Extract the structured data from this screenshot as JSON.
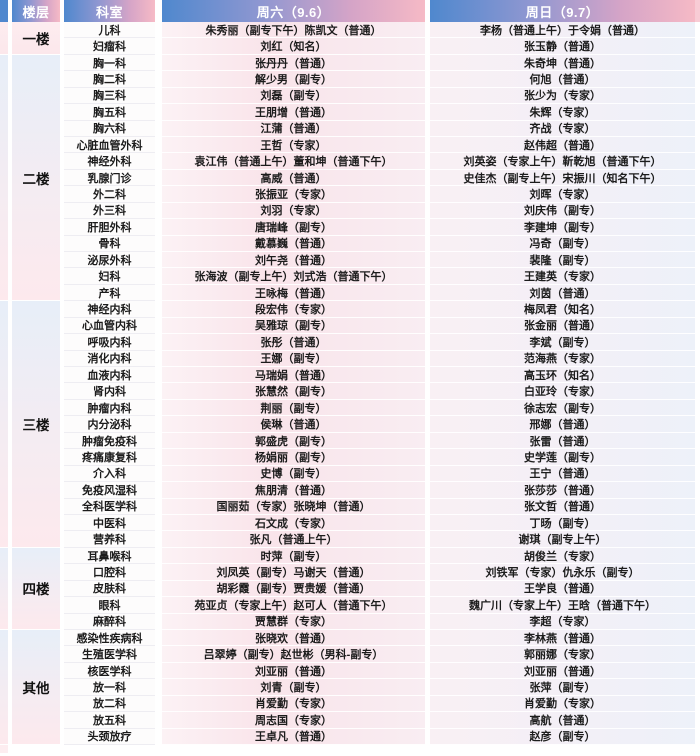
{
  "table": {
    "headers": {
      "floor": "楼层",
      "department": "科室",
      "saturday": "周六（9.6）",
      "sunday": "周日（9.7）"
    },
    "floor_groups": [
      {
        "label": "一楼",
        "row_span": 2
      },
      {
        "label": "二楼",
        "row_span": 15
      },
      {
        "label": "三楼",
        "row_span": 15
      },
      {
        "label": "四楼",
        "row_span": 5
      },
      {
        "label": "其他",
        "row_span": 7
      }
    ],
    "rows": [
      {
        "department": "儿科",
        "saturday": "朱秀丽（副专下午）陈凯文（普通）",
        "sunday": "李杨（普通上午）于令娟（普通）"
      },
      {
        "department": "妇瘤科",
        "saturday": "刘红（知名）",
        "sunday": "张玉静（普通）"
      },
      {
        "department": "胸一科",
        "saturday": "张丹丹（普通）",
        "sunday": "朱奇坤（普通）"
      },
      {
        "department": "胸二科",
        "saturday": "解少男（副专）",
        "sunday": "何旭（普通）"
      },
      {
        "department": "胸三科",
        "saturday": "刘磊（副专）",
        "sunday": "张少为（专家）"
      },
      {
        "department": "胸五科",
        "saturday": "王朋增（普通）",
        "sunday": "朱辉（专家）"
      },
      {
        "department": "胸六科",
        "saturday": "江蒲（普通）",
        "sunday": "齐战（专家）"
      },
      {
        "department": "心脏血管外科",
        "saturday": "王哲（专家）",
        "sunday": "赵伟超（普通）"
      },
      {
        "department": "神经外科",
        "saturday": "袁江伟（普通上午）董和坤（普通下午）",
        "sunday": "刘英姿（专家上午）靳乾旭（普通下午）"
      },
      {
        "department": "乳腺门诊",
        "saturday": "高威（普通）",
        "sunday": "史佳杰（副专上午）宋振川（知名下午）"
      },
      {
        "department": "外二科",
        "saturday": "张振亚（专家）",
        "sunday": "刘晖（专家）"
      },
      {
        "department": "外三科",
        "saturday": "刘羽（专家）",
        "sunday": "刘庆伟（副专）"
      },
      {
        "department": "肝胆外科",
        "saturday": "唐瑞峰（副专）",
        "sunday": "李建坤（副专）"
      },
      {
        "department": "骨科",
        "saturday": "戴慕巍（普通）",
        "sunday": "冯奇（副专）"
      },
      {
        "department": "泌尿外科",
        "saturday": "刘午尧（普通）",
        "sunday": "裴隆（副专）"
      },
      {
        "department": "妇科",
        "saturday": "张海波（副专上午）刘式浩（普通下午）",
        "sunday": "王建英（专家）"
      },
      {
        "department": "产科",
        "saturday": "王咏梅（普通）",
        "sunday": "刘茵（普通）"
      },
      {
        "department": "神经内科",
        "saturday": "段宏伟（专家）",
        "sunday": "梅凤君（知名）"
      },
      {
        "department": "心血管内科",
        "saturday": "吴雅琼（副专）",
        "sunday": "张金丽（普通）"
      },
      {
        "department": "呼吸内科",
        "saturday": "张彤（普通）",
        "sunday": "李斌（副专）"
      },
      {
        "department": "消化内科",
        "saturday": "王娜（副专）",
        "sunday": "范海燕（专家）"
      },
      {
        "department": "血液内科",
        "saturday": "马瑞娟（普通）",
        "sunday": "高玉环（知名）"
      },
      {
        "department": "肾内科",
        "saturday": "张慧然（副专）",
        "sunday": "白亚玲（专家）"
      },
      {
        "department": "肿瘤内科",
        "saturday": "荆丽（副专）",
        "sunday": "徐志宏（副专）"
      },
      {
        "department": "内分泌科",
        "saturday": "侯琳（普通）",
        "sunday": "邢娜（普通）"
      },
      {
        "department": "肿瘤免疫科",
        "saturday": "郭盛虎（副专）",
        "sunday": "张雷（普通）"
      },
      {
        "department": "疼痛康复科",
        "saturday": "杨娟丽（副专）",
        "sunday": "史学莲（副专）"
      },
      {
        "department": "介入科",
        "saturday": "史博（副专）",
        "sunday": "王宁（普通）"
      },
      {
        "department": "免疫风湿科",
        "saturday": "焦朋清（普通）",
        "sunday": "张莎莎（普通）"
      },
      {
        "department": "全科医学科",
        "saturday": "国丽茹（专家）张晓坤（普通）",
        "sunday": "张文哲（普通）"
      },
      {
        "department": "中医科",
        "saturday": "石文成（专家）",
        "sunday": "丁旸（副专）"
      },
      {
        "department": "营养科",
        "saturday": "张凡（普通上午）",
        "sunday": "谢琪（副专上午）"
      },
      {
        "department": "耳鼻喉科",
        "saturday": "时萍（副专）",
        "sunday": "胡俊兰（专家）"
      },
      {
        "department": "口腔科",
        "saturday": "刘凤英（副专）马谢天（普通）",
        "sunday": "刘铁军（专家）仇永乐（副专）"
      },
      {
        "department": "皮肤科",
        "saturday": "胡彩霞（副专）贾贵媛（普通）",
        "sunday": "王学良（普通）"
      },
      {
        "department": "眼科",
        "saturday": "苑亚贞（专家上午）赵可人（普通下午）",
        "sunday": "魏广川（专家上午）王晗（普通下午）"
      },
      {
        "department": "麻醉科",
        "saturday": "贾慧群（专家）",
        "sunday": "李超（专家）"
      },
      {
        "department": "感染性疾病科",
        "saturday": "张晓欢（普通）",
        "sunday": "李林燕（普通）"
      },
      {
        "department": "生殖医学科",
        "saturday": "吕翠婷（副专）赵世彬（男科-副专）",
        "sunday": "郭丽娜（专家）"
      },
      {
        "department": "核医学科",
        "saturday": "刘亚丽（普通）",
        "sunday": "刘亚丽（普通）"
      },
      {
        "department": "放一科",
        "saturday": "刘青（副专）",
        "sunday": "张萍（副专）"
      },
      {
        "department": "放二科",
        "saturday": "肖爱勤（专家）",
        "sunday": "肖爱勤（专家）"
      },
      {
        "department": "放五科",
        "saturday": "周志国（专家）",
        "sunday": "高航（普通）"
      },
      {
        "department": "头颈放疗",
        "saturday": "王卓凡（普通）",
        "sunday": "赵彦（副专）"
      }
    ]
  },
  "colors": {
    "header_gradient_blue": "#4f88ce",
    "header_gradient_pink": "#f6bac6",
    "header_text": "#ffffff",
    "floor_cell_blue": "#e7eef8",
    "floor_cell_pink": "#fde9ed",
    "saturday_cell_pink": "#f9e4ea",
    "sunday_cell_lavender": "#edf1f9",
    "body_text": "#1c1c1c"
  }
}
